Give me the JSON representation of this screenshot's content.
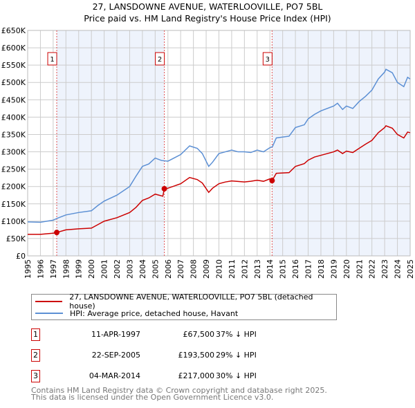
{
  "chart_data": {
    "type": "line",
    "title": "27, LANSDOWNE AVENUE, WATERLOOVILLE, PO7 5BL",
    "subtitle": "Price paid vs. HM Land Registry's House Price Index (HPI)",
    "xlim": [
      1995,
      2025
    ],
    "ylim": [
      0,
      650000
    ],
    "x_ticks": [
      "1995",
      "1996",
      "1997",
      "1998",
      "1999",
      "2000",
      "2001",
      "2002",
      "2003",
      "2004",
      "2005",
      "2006",
      "2007",
      "2008",
      "2009",
      "2010",
      "2011",
      "2012",
      "2013",
      "2014",
      "2015",
      "2016",
      "2017",
      "2018",
      "2019",
      "2020",
      "2021",
      "2022",
      "2023",
      "2024",
      "2025"
    ],
    "y_ticks": [
      {
        "v": 0,
        "label": "£0"
      },
      {
        "v": 50000,
        "label": "£50K"
      },
      {
        "v": 100000,
        "label": "£100K"
      },
      {
        "v": 150000,
        "label": "£150K"
      },
      {
        "v": 200000,
        "label": "£200K"
      },
      {
        "v": 250000,
        "label": "£250K"
      },
      {
        "v": 300000,
        "label": "£300K"
      },
      {
        "v": 350000,
        "label": "£350K"
      },
      {
        "v": 400000,
        "label": "£400K"
      },
      {
        "v": 450000,
        "label": "£450K"
      },
      {
        "v": 500000,
        "label": "£500K"
      },
      {
        "v": 550000,
        "label": "£550K"
      },
      {
        "v": 600000,
        "label": "£600K"
      },
      {
        "v": 650000,
        "label": "£650K"
      }
    ],
    "grid": true,
    "series": [
      {
        "name": "27, LANSDOWNE AVENUE, WATERLOOVILLE, PO7 5BL (detached house)",
        "color": "#cc0000",
        "x": [
          1995,
          1996,
          1997.2,
          1997.28,
          1998,
          1999,
          2000,
          2000.5,
          2001,
          2002,
          2003,
          2003.5,
          2004,
          2004.5,
          2005,
          2005.6,
          2005.72,
          2006,
          2007,
          2007.7,
          2008.3,
          2008.7,
          2009.2,
          2009.5,
          2010,
          2010.5,
          2011,
          2012,
          2012.5,
          2013,
          2013.5,
          2014,
          2014.17,
          2014.5,
          2015.5,
          2016,
          2016.7,
          2017,
          2017.5,
          2018,
          2019,
          2019.3,
          2019.7,
          2020,
          2020.5,
          2021,
          2021.5,
          2022,
          2022.5,
          2023,
          2023.1,
          2023.6,
          2024,
          2024.5,
          2024.8,
          2025
        ],
        "y": [
          62000,
          62000,
          66000,
          67500,
          75000,
          78000,
          80000,
          90000,
          100000,
          110000,
          125000,
          140000,
          160000,
          167000,
          178000,
          172000,
          193500,
          195000,
          208000,
          226000,
          220000,
          210000,
          183000,
          195000,
          208000,
          213000,
          216000,
          213000,
          215000,
          218000,
          215000,
          222000,
          217000,
          238000,
          240000,
          258000,
          266000,
          276000,
          285000,
          290000,
          300000,
          305000,
          295000,
          302000,
          298000,
          310000,
          322000,
          333000,
          355000,
          370000,
          375000,
          368000,
          350000,
          340000,
          357000,
          355000
        ]
      },
      {
        "name": "HPI: Average price, detached house, Havant",
        "color": "#5b8fd4",
        "x": [
          1995,
          1996,
          1997,
          1997.3,
          1998,
          1999,
          2000,
          2000.5,
          2001,
          2002,
          2003,
          2003.5,
          2004,
          2004.5,
          2005,
          2005.5,
          2006,
          2007,
          2007.7,
          2008.3,
          2008.7,
          2009.2,
          2009.5,
          2010,
          2010.5,
          2011,
          2011.5,
          2012,
          2012.5,
          2013,
          2013.5,
          2014,
          2014.2,
          2014.5,
          2015.5,
          2016,
          2016.7,
          2017,
          2017.5,
          2018,
          2019,
          2019.3,
          2019.7,
          2020,
          2020.5,
          2021,
          2021.5,
          2022,
          2022.5,
          2023,
          2023.1,
          2023.6,
          2024,
          2024.5,
          2024.8,
          2025
        ],
        "y": [
          98000,
          97000,
          103000,
          108000,
          118000,
          125000,
          130000,
          145000,
          158000,
          175000,
          200000,
          230000,
          258000,
          265000,
          282000,
          275000,
          273000,
          292000,
          317000,
          310000,
          295000,
          258000,
          270000,
          295000,
          300000,
          305000,
          300000,
          300000,
          298000,
          305000,
          300000,
          312000,
          315000,
          340000,
          345000,
          370000,
          378000,
          395000,
          408000,
          418000,
          432000,
          440000,
          422000,
          432000,
          425000,
          445000,
          460000,
          478000,
          510000,
          530000,
          538000,
          528000,
          500000,
          488000,
          515000,
          510000
        ]
      }
    ],
    "sales": [
      {
        "n": "1",
        "x": 1997.28,
        "y": 67500,
        "date": "11-APR-1997",
        "price": "£67,500",
        "hpi": "37% ↓ HPI"
      },
      {
        "n": "2",
        "x": 2005.72,
        "y": 193500,
        "date": "22-SEP-2005",
        "price": "£193,500",
        "hpi": "29% ↓ HPI"
      },
      {
        "n": "3",
        "x": 2014.17,
        "y": 217000,
        "date": "04-MAR-2014",
        "price": "£217,000",
        "hpi": "30% ↓ HPI"
      }
    ],
    "footer": [
      "Contains HM Land Registry data © Crown copyright and database right 2025.",
      "This data is licensed under the Open Government Licence v3.0."
    ]
  }
}
